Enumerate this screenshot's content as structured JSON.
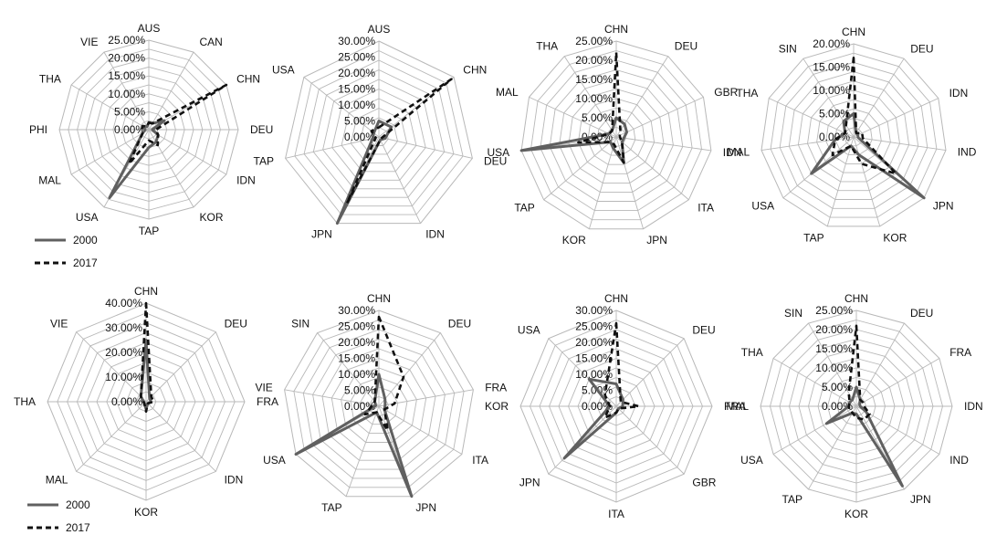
{
  "legend": [
    {
      "name": "2000",
      "color": "#606060",
      "dash": "solid"
    },
    {
      "name": "2017",
      "color": "#111111",
      "dash": "dashed"
    }
  ],
  "chart_data": [
    {
      "type": "radar",
      "axes": [
        "AUS",
        "CAN",
        "CHN",
        "DEU",
        "IDN",
        "KOR",
        "TAP",
        "USA",
        "MAL",
        "PHI",
        "THA",
        "VIE"
      ],
      "ticks": [
        "0.00%",
        "5.00%",
        "10.00%",
        "15.00%",
        "20.00%",
        "25.00%"
      ],
      "rmax": 25,
      "series": [
        {
          "name": "2000",
          "values": [
            2,
            2,
            5,
            1,
            3,
            4,
            5,
            22,
            2,
            1,
            2,
            1
          ]
        },
        {
          "name": "2017",
          "values": [
            2,
            2,
            25,
            2,
            3,
            5,
            3,
            11,
            2,
            2,
            2,
            1
          ]
        }
      ]
    },
    {
      "type": "radar",
      "axes": [
        "AUS",
        "CHN",
        "DEU",
        "IDN",
        "JPN",
        "TAP",
        "USA"
      ],
      "ticks": [
        "0.00%",
        "5.00%",
        "10.00%",
        "15.00%",
        "20.00%",
        "25.00%",
        "30.00%"
      ],
      "rmax": 30,
      "series": [
        {
          "name": "2000",
          "values": [
            5,
            5,
            2,
            1,
            30,
            2,
            2
          ]
        },
        {
          "name": "2017",
          "values": [
            3,
            29,
            1,
            1,
            23,
            1,
            3
          ]
        }
      ]
    },
    {
      "type": "radar",
      "axes": [
        "CHN",
        "DEU",
        "GBR",
        "IDN",
        "ITA",
        "JPN",
        "KOR",
        "TAP",
        "USA",
        "MAL",
        "THA"
      ],
      "ticks": [
        "0.00%",
        "5.00%",
        "10.00%",
        "15.00%",
        "20.00%",
        "25.00%"
      ],
      "rmax": 25,
      "series": [
        {
          "name": "2000",
          "values": [
            5,
            4,
            3,
            2,
            2,
            7,
            3,
            2,
            25,
            2,
            2
          ]
        },
        {
          "name": "2017",
          "values": [
            22,
            2,
            1,
            1,
            2,
            7,
            2,
            2,
            10,
            2,
            2
          ]
        }
      ]
    },
    {
      "type": "radar",
      "axes": [
        "CHN",
        "DEU",
        "IDN",
        "IND",
        "JPN",
        "KOR",
        "TAP",
        "USA",
        "MAL",
        "THA",
        "SIN"
      ],
      "ticks": [
        "0.00%",
        "5.00%",
        "10.00%",
        "15.00%",
        "20.00%"
      ],
      "rmax": 20,
      "series": [
        {
          "name": "2000",
          "values": [
            5,
            1,
            1,
            1,
            20,
            4,
            2,
            12,
            4,
            2,
            4
          ]
        },
        {
          "name": "2017",
          "values": [
            17,
            1,
            2,
            2,
            12,
            6,
            2,
            6,
            4,
            2,
            3
          ]
        }
      ]
    },
    {
      "type": "radar",
      "axes": [
        "CHN",
        "DEU",
        "FRA",
        "IDN",
        "KOR",
        "MAL",
        "THA",
        "VIE"
      ],
      "ticks": [
        "0.00%",
        "10.00%",
        "20.00%",
        "30.00%",
        "40.00%"
      ],
      "rmax": 40,
      "series": [
        {
          "name": "2000",
          "values": [
            25,
            2,
            2,
            1,
            3,
            1,
            1,
            3
          ]
        },
        {
          "name": "2017",
          "values": [
            40,
            3,
            3,
            1,
            4,
            1,
            1,
            3
          ]
        }
      ]
    },
    {
      "type": "radar",
      "axes": [
        "CHN",
        "DEU",
        "FRA",
        "ITA",
        "JPN",
        "TAP",
        "USA",
        "VIE",
        "SIN"
      ],
      "ticks": [
        "0.00%",
        "5.00%",
        "10.00%",
        "15.00%",
        "20.00%",
        "25.00%",
        "30.00%"
      ],
      "rmax": 30,
      "series": [
        {
          "name": "2000",
          "values": [
            10,
            3,
            2,
            2,
            30,
            2,
            30,
            1,
            2
          ]
        },
        {
          "name": "2017",
          "values": [
            28,
            12,
            5,
            2,
            8,
            2,
            5,
            2,
            2
          ]
        }
      ]
    },
    {
      "type": "radar",
      "axes": [
        "CHN",
        "DEU",
        "FRA",
        "GBR",
        "ITA",
        "JPN",
        "KOR",
        "USA"
      ],
      "ticks": [
        "0.00%",
        "5.00%",
        "10.00%",
        "15.00%",
        "20.00%",
        "25.00%",
        "30.00%"
      ],
      "rmax": 30,
      "series": [
        {
          "name": "2000",
          "values": [
            7,
            3,
            2,
            1,
            2,
            23,
            2,
            12
          ]
        },
        {
          "name": "2017",
          "values": [
            26,
            2,
            7,
            1,
            2,
            5,
            2,
            5
          ]
        }
      ]
    },
    {
      "type": "radar",
      "axes": [
        "CHN",
        "DEU",
        "FRA",
        "IDN",
        "IND",
        "JPN",
        "KOR",
        "TAP",
        "USA",
        "MAL",
        "THA",
        "SIN"
      ],
      "ticks": [
        "0.00%",
        "5.00%",
        "10.00%",
        "15.00%",
        "20.00%",
        "25.00%"
      ],
      "rmax": 25,
      "series": [
        {
          "name": "2000",
          "values": [
            5,
            2,
            1,
            1,
            3,
            24,
            2,
            2,
            9,
            2,
            2,
            2
          ]
        },
        {
          "name": "2017",
          "values": [
            21,
            2,
            2,
            2,
            4,
            4,
            3,
            2,
            2,
            2,
            2,
            4
          ]
        }
      ]
    }
  ]
}
